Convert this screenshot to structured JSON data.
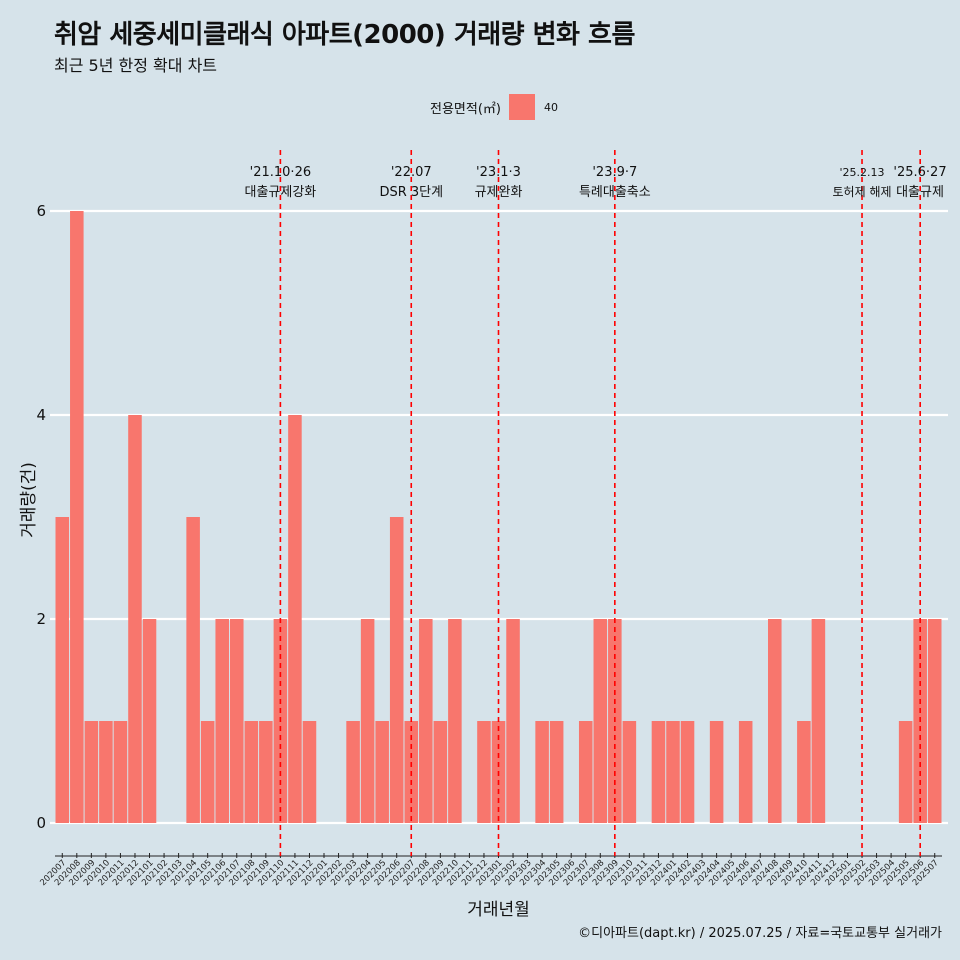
{
  "title": "취암 세중세미클래식 아파트(2000) 거래량 변화 흐름",
  "subtitle": "최근 5년 한정 확대 차트",
  "caption": "©디아파트(dapt.kr) / 2025.07.25 / 자료=국토교통부 실거래가",
  "legend": {
    "title": "전용면적(㎡)",
    "entry": "40",
    "color": "#f8766d"
  },
  "colors": {
    "background": "#d6e3ea",
    "bar": "#f8766d",
    "gridline": "#ffffff",
    "event_line": "#ff0000"
  },
  "chart_data": {
    "type": "bar",
    "title": "취암 세중세미클래식 아파트(2000) 거래량 변화 흐름",
    "subtitle": "최근 5년 한정 확대 차트",
    "xlabel": "거래년월",
    "ylabel": "거래량(건)",
    "ylim": [
      0,
      6
    ],
    "yticks": [
      0,
      2,
      4,
      6
    ],
    "grid": "horizontal",
    "legend_position": "top",
    "categories": [
      "202007",
      "202008",
      "202009",
      "202010",
      "202011",
      "202012",
      "202101",
      "202102",
      "202103",
      "202104",
      "202105",
      "202106",
      "202107",
      "202108",
      "202109",
      "202110",
      "202111",
      "202112",
      "202201",
      "202202",
      "202203",
      "202204",
      "202205",
      "202206",
      "202207",
      "202208",
      "202209",
      "202210",
      "202211",
      "202212",
      "202301",
      "202302",
      "202303",
      "202304",
      "202305",
      "202306",
      "202307",
      "202308",
      "202309",
      "202310",
      "202311",
      "202312",
      "202401",
      "202402",
      "202403",
      "202404",
      "202405",
      "202406",
      "202407",
      "202408",
      "202409",
      "202410",
      "202411",
      "202412",
      "202501",
      "202502",
      "202503",
      "202504",
      "202505",
      "202506",
      "202507"
    ],
    "series": [
      {
        "name": "40",
        "values": [
          3,
          6,
          1,
          1,
          1,
          4,
          2,
          0,
          0,
          3,
          1,
          2,
          2,
          1,
          1,
          2,
          4,
          1,
          0,
          0,
          1,
          2,
          1,
          3,
          1,
          2,
          1,
          2,
          0,
          1,
          1,
          2,
          0,
          1,
          1,
          0,
          1,
          2,
          2,
          1,
          0,
          1,
          1,
          1,
          0,
          1,
          0,
          1,
          0,
          2,
          0,
          1,
          2,
          0,
          0,
          0,
          0,
          0,
          1,
          2,
          2
        ]
      }
    ],
    "events": [
      {
        "x": "202110",
        "date": "'21.10·26",
        "label": "대출규제강화"
      },
      {
        "x": "202207",
        "date": "'22.07",
        "label": "DSR 3단계"
      },
      {
        "x": "202301",
        "date": "'23.1·3",
        "label": "규제완화"
      },
      {
        "x": "202309",
        "date": "'23.9·7",
        "label": "특례대출축소"
      },
      {
        "x": "202502",
        "date": "'25.2.13",
        "label": "토허제 해제"
      },
      {
        "x": "202506",
        "date": "'25.6·27",
        "label": "대출규제"
      }
    ]
  }
}
